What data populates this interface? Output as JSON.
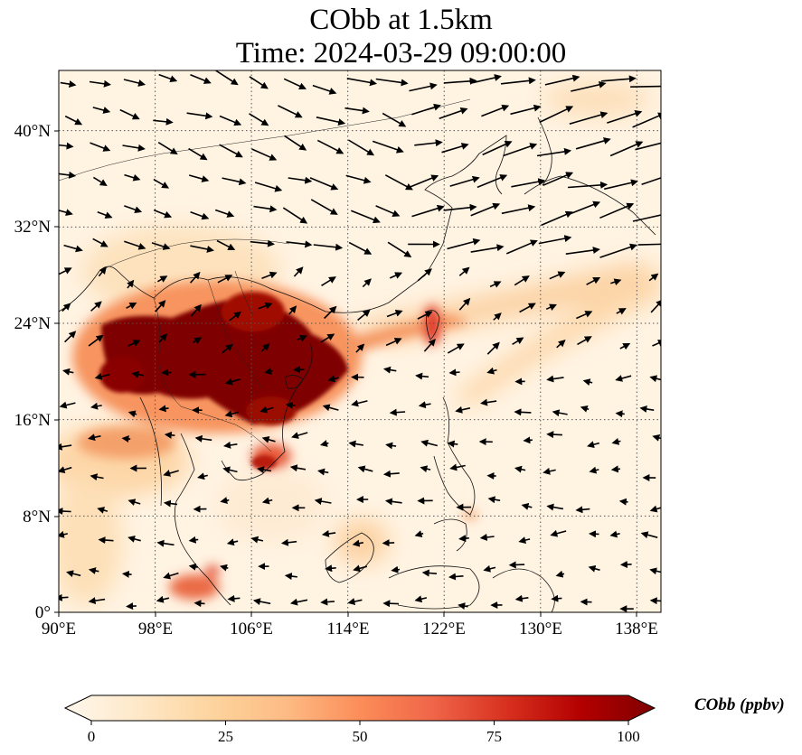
{
  "header": {
    "title_line1": "CObb at 1.5km",
    "title_line2": "Time: 2024-03-29 09:00:00"
  },
  "map": {
    "projection": "PlateCarree",
    "lon_range": [
      90,
      140
    ],
    "lat_range": [
      0,
      45
    ],
    "x_ticks": [
      "90°E",
      "98°E",
      "106°E",
      "114°E",
      "122°E",
      "130°E",
      "138°E"
    ],
    "x_tick_values": [
      90,
      98,
      106,
      114,
      122,
      130,
      138
    ],
    "y_ticks": [
      "0°",
      "8°N",
      "16°N",
      "24°N",
      "32°N",
      "40°N"
    ],
    "y_tick_values": [
      0,
      8,
      16,
      24,
      32,
      40
    ],
    "gridlines": "dotted",
    "layers": [
      "filled CObb concentration field",
      "coastlines and country borders",
      "wind vectors"
    ],
    "hotspot_region": "Southeast Asia (Myanmar, Laos, Vietnam, S. China)"
  },
  "colorbar": {
    "label": "CObb (ppbv)",
    "colormap": "OrRd",
    "range": [
      0,
      100
    ],
    "ticks": [
      "0",
      "25",
      "50",
      "75",
      "100"
    ],
    "tick_values": [
      0,
      25,
      50,
      75,
      100
    ],
    "extend": "both",
    "colors": [
      "#fff7ec",
      "#fee8c8",
      "#fdd49e",
      "#fdbb84",
      "#fc8d59",
      "#ef6548",
      "#d7301f",
      "#b30000",
      "#7f0000"
    ]
  }
}
